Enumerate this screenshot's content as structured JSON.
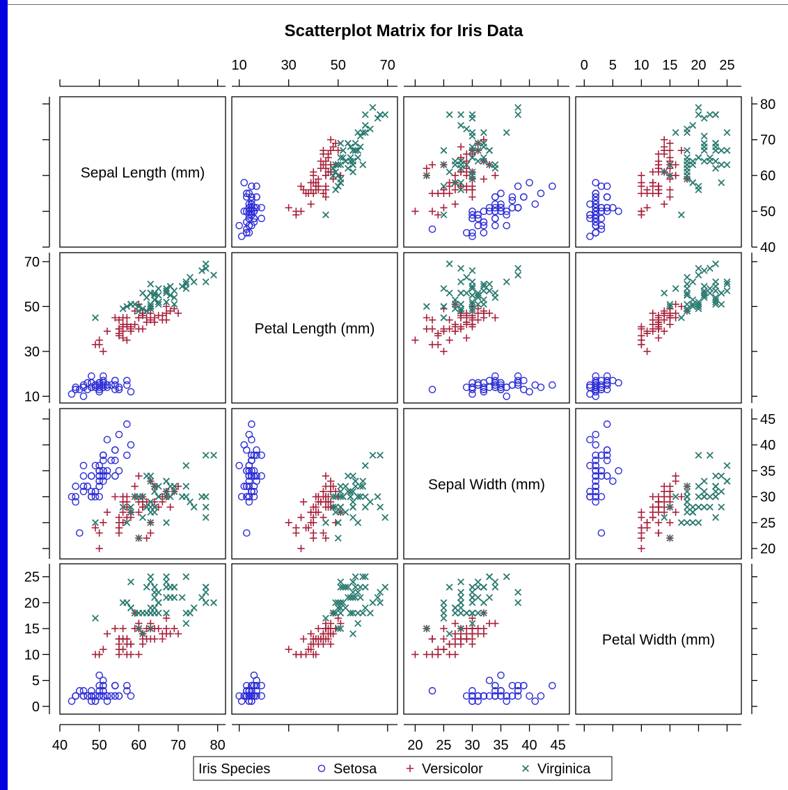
{
  "chart_data": {
    "type": "scatter",
    "title": "Scatterplot Matrix for Iris Data",
    "variables": [
      {
        "key": "sl",
        "label": "Sepal Length (mm)",
        "range": [
          40,
          82
        ],
        "ticks": [
          40,
          50,
          60,
          70,
          80
        ]
      },
      {
        "key": "pl",
        "label": "Petal Length (mm)",
        "range": [
          7,
          74
        ],
        "ticks": [
          10,
          30,
          50,
          70
        ]
      },
      {
        "key": "sw",
        "label": "Sepal Width (mm)",
        "range": [
          18,
          47
        ],
        "ticks": [
          20,
          25,
          30,
          35,
          40,
          45
        ]
      },
      {
        "key": "pw",
        "label": "Petal Width (mm)",
        "range": [
          -1.5,
          27.5
        ],
        "ticks": [
          0,
          5,
          10,
          15,
          20,
          25
        ]
      }
    ],
    "legend": {
      "title": "Iris Species",
      "position": "bottom"
    },
    "series": [
      {
        "name": "Setosa",
        "marker": "circle",
        "color": "#2b2bd6",
        "fields": [
          "sl",
          "sw",
          "pl",
          "pw"
        ],
        "points": [
          [
            51,
            35,
            14,
            2
          ],
          [
            49,
            30,
            14,
            2
          ],
          [
            47,
            32,
            13,
            2
          ],
          [
            46,
            31,
            15,
            2
          ],
          [
            50,
            36,
            14,
            2
          ],
          [
            54,
            39,
            17,
            4
          ],
          [
            46,
            34,
            14,
            3
          ],
          [
            50,
            34,
            15,
            2
          ],
          [
            44,
            29,
            14,
            2
          ],
          [
            49,
            31,
            15,
            1
          ],
          [
            54,
            37,
            15,
            2
          ],
          [
            48,
            34,
            16,
            2
          ],
          [
            48,
            30,
            14,
            1
          ],
          [
            43,
            30,
            11,
            1
          ],
          [
            58,
            40,
            12,
            2
          ],
          [
            57,
            44,
            15,
            4
          ],
          [
            54,
            39,
            13,
            4
          ],
          [
            51,
            35,
            14,
            3
          ],
          [
            57,
            38,
            17,
            3
          ],
          [
            51,
            38,
            15,
            3
          ],
          [
            54,
            34,
            17,
            2
          ],
          [
            51,
            37,
            15,
            4
          ],
          [
            46,
            36,
            10,
            2
          ],
          [
            51,
            33,
            17,
            5
          ],
          [
            48,
            34,
            19,
            2
          ],
          [
            50,
            30,
            16,
            2
          ],
          [
            50,
            34,
            16,
            4
          ],
          [
            52,
            35,
            15,
            2
          ],
          [
            52,
            34,
            14,
            2
          ],
          [
            47,
            32,
            16,
            2
          ],
          [
            48,
            31,
            16,
            2
          ],
          [
            54,
            34,
            15,
            4
          ],
          [
            52,
            41,
            15,
            1
          ],
          [
            55,
            42,
            14,
            2
          ],
          [
            49,
            31,
            15,
            2
          ],
          [
            50,
            32,
            12,
            2
          ],
          [
            55,
            35,
            13,
            2
          ],
          [
            49,
            36,
            14,
            1
          ],
          [
            44,
            30,
            13,
            2
          ],
          [
            51,
            34,
            15,
            2
          ],
          [
            50,
            35,
            13,
            3
          ],
          [
            45,
            23,
            13,
            3
          ],
          [
            44,
            32,
            13,
            2
          ],
          [
            50,
            35,
            16,
            6
          ],
          [
            51,
            38,
            19,
            4
          ],
          [
            48,
            30,
            14,
            3
          ],
          [
            51,
            38,
            16,
            2
          ],
          [
            46,
            32,
            14,
            2
          ],
          [
            53,
            37,
            15,
            2
          ],
          [
            50,
            33,
            14,
            2
          ]
        ]
      },
      {
        "name": "Versicolor",
        "marker": "plus",
        "color": "#a8213a",
        "fields": [
          "sl",
          "sw",
          "pl",
          "pw"
        ],
        "points": [
          [
            70,
            32,
            47,
            14
          ],
          [
            64,
            32,
            45,
            15
          ],
          [
            69,
            31,
            49,
            15
          ],
          [
            55,
            23,
            40,
            13
          ],
          [
            65,
            28,
            46,
            15
          ],
          [
            57,
            28,
            45,
            13
          ],
          [
            63,
            33,
            47,
            16
          ],
          [
            49,
            24,
            33,
            10
          ],
          [
            66,
            29,
            46,
            13
          ],
          [
            52,
            27,
            39,
            14
          ],
          [
            50,
            20,
            35,
            10
          ],
          [
            59,
            30,
            42,
            15
          ],
          [
            60,
            22,
            40,
            10
          ],
          [
            61,
            29,
            47,
            14
          ],
          [
            56,
            29,
            36,
            13
          ],
          [
            67,
            31,
            44,
            14
          ],
          [
            56,
            30,
            45,
            15
          ],
          [
            58,
            27,
            41,
            10
          ],
          [
            62,
            22,
            45,
            15
          ],
          [
            56,
            25,
            39,
            11
          ],
          [
            59,
            32,
            48,
            18
          ],
          [
            61,
            28,
            40,
            13
          ],
          [
            63,
            25,
            49,
            15
          ],
          [
            61,
            28,
            47,
            12
          ],
          [
            64,
            29,
            43,
            13
          ],
          [
            66,
            30,
            44,
            14
          ],
          [
            68,
            28,
            48,
            14
          ],
          [
            67,
            30,
            50,
            17
          ],
          [
            60,
            29,
            45,
            15
          ],
          [
            57,
            26,
            35,
            10
          ],
          [
            55,
            24,
            38,
            11
          ],
          [
            55,
            24,
            37,
            10
          ],
          [
            58,
            27,
            39,
            12
          ],
          [
            60,
            27,
            51,
            16
          ],
          [
            54,
            30,
            45,
            15
          ],
          [
            60,
            34,
            45,
            16
          ],
          [
            67,
            31,
            47,
            15
          ],
          [
            63,
            23,
            44,
            13
          ],
          [
            56,
            30,
            41,
            13
          ],
          [
            55,
            25,
            40,
            13
          ],
          [
            55,
            26,
            44,
            12
          ],
          [
            61,
            30,
            46,
            14
          ],
          [
            58,
            26,
            40,
            12
          ],
          [
            50,
            23,
            33,
            10
          ],
          [
            56,
            27,
            42,
            13
          ],
          [
            57,
            30,
            42,
            12
          ],
          [
            57,
            29,
            42,
            13
          ],
          [
            62,
            29,
            43,
            13
          ],
          [
            51,
            25,
            30,
            11
          ],
          [
            57,
            28,
            41,
            13
          ]
        ]
      },
      {
        "name": "Virginica",
        "marker": "x",
        "color": "#2a7a70",
        "fields": [
          "sl",
          "sw",
          "pl",
          "pw"
        ],
        "points": [
          [
            63,
            33,
            60,
            25
          ],
          [
            58,
            27,
            51,
            19
          ],
          [
            71,
            30,
            59,
            21
          ],
          [
            63,
            29,
            56,
            18
          ],
          [
            65,
            30,
            58,
            22
          ],
          [
            76,
            30,
            66,
            21
          ],
          [
            49,
            25,
            45,
            17
          ],
          [
            73,
            29,
            63,
            18
          ],
          [
            67,
            25,
            58,
            18
          ],
          [
            72,
            36,
            61,
            25
          ],
          [
            65,
            32,
            51,
            20
          ],
          [
            64,
            27,
            53,
            19
          ],
          [
            68,
            30,
            55,
            21
          ],
          [
            57,
            25,
            50,
            20
          ],
          [
            58,
            28,
            51,
            24
          ],
          [
            64,
            32,
            53,
            23
          ],
          [
            65,
            30,
            55,
            18
          ],
          [
            77,
            38,
            67,
            22
          ],
          [
            77,
            26,
            69,
            23
          ],
          [
            60,
            22,
            50,
            15
          ],
          [
            69,
            32,
            57,
            23
          ],
          [
            56,
            28,
            49,
            20
          ],
          [
            77,
            28,
            67,
            20
          ],
          [
            63,
            27,
            49,
            18
          ],
          [
            67,
            33,
            57,
            21
          ],
          [
            72,
            32,
            60,
            18
          ],
          [
            62,
            28,
            48,
            18
          ],
          [
            61,
            30,
            49,
            18
          ],
          [
            64,
            28,
            56,
            21
          ],
          [
            72,
            30,
            58,
            16
          ],
          [
            74,
            28,
            61,
            19
          ],
          [
            79,
            38,
            64,
            20
          ],
          [
            64,
            28,
            56,
            22
          ],
          [
            63,
            28,
            51,
            15
          ],
          [
            61,
            26,
            56,
            14
          ],
          [
            77,
            30,
            61,
            23
          ],
          [
            63,
            34,
            56,
            24
          ],
          [
            64,
            31,
            55,
            18
          ],
          [
            60,
            30,
            48,
            18
          ],
          [
            69,
            31,
            54,
            21
          ],
          [
            67,
            31,
            56,
            24
          ],
          [
            69,
            31,
            51,
            23
          ],
          [
            58,
            27,
            51,
            19
          ],
          [
            68,
            32,
            59,
            23
          ],
          [
            67,
            33,
            57,
            25
          ],
          [
            67,
            30,
            52,
            23
          ],
          [
            63,
            25,
            50,
            19
          ],
          [
            65,
            30,
            52,
            20
          ],
          [
            62,
            34,
            54,
            23
          ],
          [
            59,
            30,
            51,
            18
          ]
        ]
      }
    ]
  }
}
